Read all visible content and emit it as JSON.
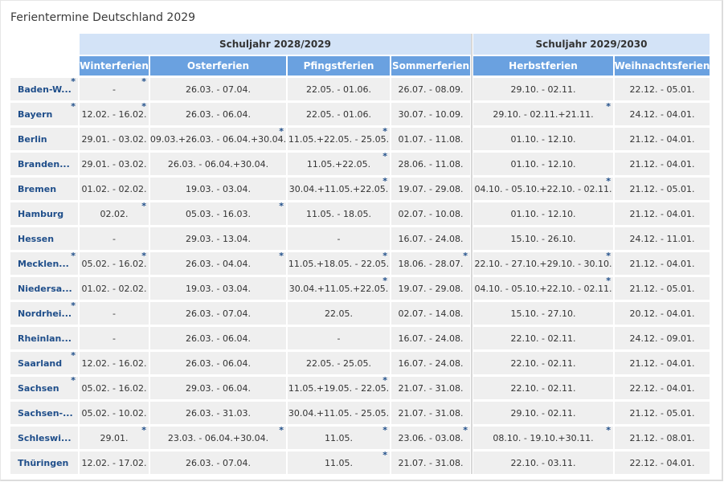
{
  "title": "Ferientermine Deutschland 2029",
  "years": [
    "Schuljahr 2028/2029",
    "Schuljahr 2029/2030"
  ],
  "columns": [
    "Winterferien",
    "Osterferien",
    "Pfingstferien",
    "Sommerferien",
    "Herbstferien",
    "Weihnachtsferien"
  ],
  "footnote_marker": "*",
  "rows": [
    {
      "state": "Baden-W...",
      "state_star": true,
      "values": [
        "-",
        "26.03. - 07.04.",
        "22.05. - 01.06.",
        "26.07. - 08.09.",
        "29.10. - 02.11.",
        "22.12. - 05.01."
      ],
      "stars": [
        true,
        false,
        false,
        false,
        false,
        false
      ]
    },
    {
      "state": "Bayern",
      "state_star": true,
      "values": [
        "12.02. - 16.02.",
        "26.03. - 06.04.",
        "22.05. - 01.06.",
        "30.07. - 10.09.",
        "29.10. - 02.11.+21.11.",
        "24.12. - 04.01."
      ],
      "stars": [
        true,
        false,
        false,
        false,
        true,
        false
      ]
    },
    {
      "state": "Berlin",
      "state_star": false,
      "values": [
        "29.01. - 03.02.",
        "09.03.+26.03. - 06.04.+30.04.",
        "11.05.+22.05. - 25.05.",
        "01.07. - 11.08.",
        "01.10. - 12.10.",
        "21.12. - 04.01."
      ],
      "stars": [
        false,
        true,
        true,
        false,
        false,
        false
      ]
    },
    {
      "state": "Branden...",
      "state_star": false,
      "values": [
        "29.01. - 03.02.",
        "26.03. - 06.04.+30.04.",
        "11.05.+22.05.",
        "28.06. - 11.08.",
        "01.10. - 12.10.",
        "21.12. - 04.01."
      ],
      "stars": [
        false,
        false,
        true,
        false,
        false,
        false
      ]
    },
    {
      "state": "Bremen",
      "state_star": false,
      "values": [
        "01.02. - 02.02.",
        "19.03. - 03.04.",
        "30.04.+11.05.+22.05.",
        "19.07. - 29.08.",
        "04.10. - 05.10.+22.10. - 02.11.",
        "21.12. - 05.01."
      ],
      "stars": [
        false,
        false,
        true,
        false,
        true,
        false
      ]
    },
    {
      "state": "Hamburg",
      "state_star": false,
      "values": [
        "02.02.",
        "05.03. - 16.03.",
        "11.05. - 18.05.",
        "02.07. - 10.08.",
        "01.10. - 12.10.",
        "21.12. - 04.01."
      ],
      "stars": [
        true,
        true,
        false,
        false,
        false,
        false
      ]
    },
    {
      "state": "Hessen",
      "state_star": false,
      "values": [
        "-",
        "29.03. - 13.04.",
        "-",
        "16.07. - 24.08.",
        "15.10. - 26.10.",
        "24.12. - 11.01."
      ],
      "stars": [
        false,
        false,
        false,
        false,
        false,
        false
      ]
    },
    {
      "state": "Mecklen...",
      "state_star": true,
      "values": [
        "05.02. - 16.02.",
        "26.03. - 04.04.",
        "11.05.+18.05. - 22.05.",
        "18.06. - 28.07.",
        "22.10. - 27.10.+29.10. - 30.10.",
        "21.12. - 04.01."
      ],
      "stars": [
        true,
        true,
        true,
        true,
        true,
        false
      ]
    },
    {
      "state": "Niedersa...",
      "state_star": false,
      "values": [
        "01.02. - 02.02.",
        "19.03. - 03.04.",
        "30.04.+11.05.+22.05.",
        "19.07. - 29.08.",
        "04.10. - 05.10.+22.10. - 02.11.",
        "21.12. - 05.01."
      ],
      "stars": [
        false,
        false,
        true,
        false,
        true,
        false
      ]
    },
    {
      "state": "Nordrhei...",
      "state_star": true,
      "values": [
        "-",
        "26.03. - 07.04.",
        "22.05.",
        "02.07. - 14.08.",
        "15.10. - 27.10.",
        "20.12. - 04.01."
      ],
      "stars": [
        false,
        false,
        false,
        false,
        false,
        false
      ]
    },
    {
      "state": "Rheinlan...",
      "state_star": false,
      "values": [
        "-",
        "26.03. - 06.04.",
        "-",
        "16.07. - 24.08.",
        "22.10. - 02.11.",
        "24.12. - 09.01."
      ],
      "stars": [
        false,
        false,
        false,
        false,
        false,
        false
      ]
    },
    {
      "state": "Saarland",
      "state_star": true,
      "values": [
        "12.02. - 16.02.",
        "26.03. - 06.04.",
        "22.05. - 25.05.",
        "16.07. - 24.08.",
        "22.10. - 02.11.",
        "21.12. - 04.01."
      ],
      "stars": [
        false,
        false,
        false,
        false,
        false,
        false
      ]
    },
    {
      "state": "Sachsen",
      "state_star": true,
      "values": [
        "05.02. - 16.02.",
        "29.03. - 06.04.",
        "11.05.+19.05. - 22.05.",
        "21.07. - 31.08.",
        "22.10. - 02.11.",
        "22.12. - 04.01."
      ],
      "stars": [
        false,
        false,
        true,
        false,
        false,
        false
      ]
    },
    {
      "state": "Sachsen-...",
      "state_star": false,
      "values": [
        "05.02. - 10.02.",
        "26.03. - 31.03.",
        "30.04.+11.05. - 25.05.",
        "21.07. - 31.08.",
        "29.10. - 02.11.",
        "21.12. - 05.01."
      ],
      "stars": [
        false,
        false,
        false,
        false,
        false,
        false
      ]
    },
    {
      "state": "Schleswi...",
      "state_star": false,
      "values": [
        "29.01.",
        "23.03. - 06.04.+30.04.",
        "11.05.",
        "23.06. - 03.08.",
        "08.10. - 19.10.+30.11.",
        "21.12. - 08.01."
      ],
      "stars": [
        true,
        true,
        true,
        true,
        true,
        false
      ]
    },
    {
      "state": "Thüringen",
      "state_star": false,
      "values": [
        "12.02. - 17.02.",
        "26.03. - 07.04.",
        "11.05.",
        "21.07. - 31.08.",
        "22.10. - 03.11.",
        "22.12. - 04.01."
      ],
      "stars": [
        false,
        false,
        true,
        false,
        false,
        false
      ]
    }
  ]
}
